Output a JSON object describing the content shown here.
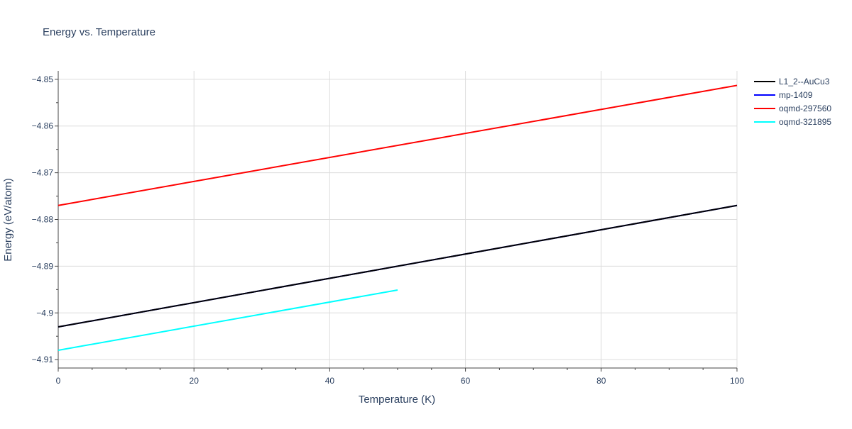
{
  "chart_data": {
    "type": "line",
    "title": "Energy vs. Temperature",
    "xlabel": "Temperature (K)",
    "ylabel": "Energy (eV/atom)",
    "xlim": [
      0,
      100
    ],
    "ylim": [
      -4.9118,
      -4.8482
    ],
    "x_ticks": [
      0,
      20,
      40,
      60,
      80,
      100
    ],
    "x_tick_labels": [
      "0",
      "20",
      "40",
      "60",
      "80",
      "100"
    ],
    "y_ticks": [
      -4.91,
      -4.9,
      -4.89,
      -4.88,
      -4.87,
      -4.86,
      -4.85
    ],
    "y_tick_labels": [
      "−4.91",
      "−4.9",
      "−4.89",
      "−4.88",
      "−4.87",
      "−4.86",
      "−4.85"
    ],
    "grid": true,
    "legend_position": "top-right",
    "series": [
      {
        "name": "L1_2--AuCu3",
        "color": "#000000",
        "x": [
          0,
          100
        ],
        "y": [
          -4.903,
          -4.877
        ]
      },
      {
        "name": "mp-1409",
        "color": "#0000ff",
        "x": [
          0,
          100
        ],
        "y": [
          -4.903,
          -4.877
        ]
      },
      {
        "name": "oqmd-297560",
        "color": "#ff0000",
        "x": [
          0,
          100
        ],
        "y": [
          -4.877,
          -4.8513
        ]
      },
      {
        "name": "oqmd-321895",
        "color": "#00ffff",
        "x": [
          0,
          50
        ],
        "y": [
          -4.908,
          -4.8951
        ]
      }
    ]
  }
}
